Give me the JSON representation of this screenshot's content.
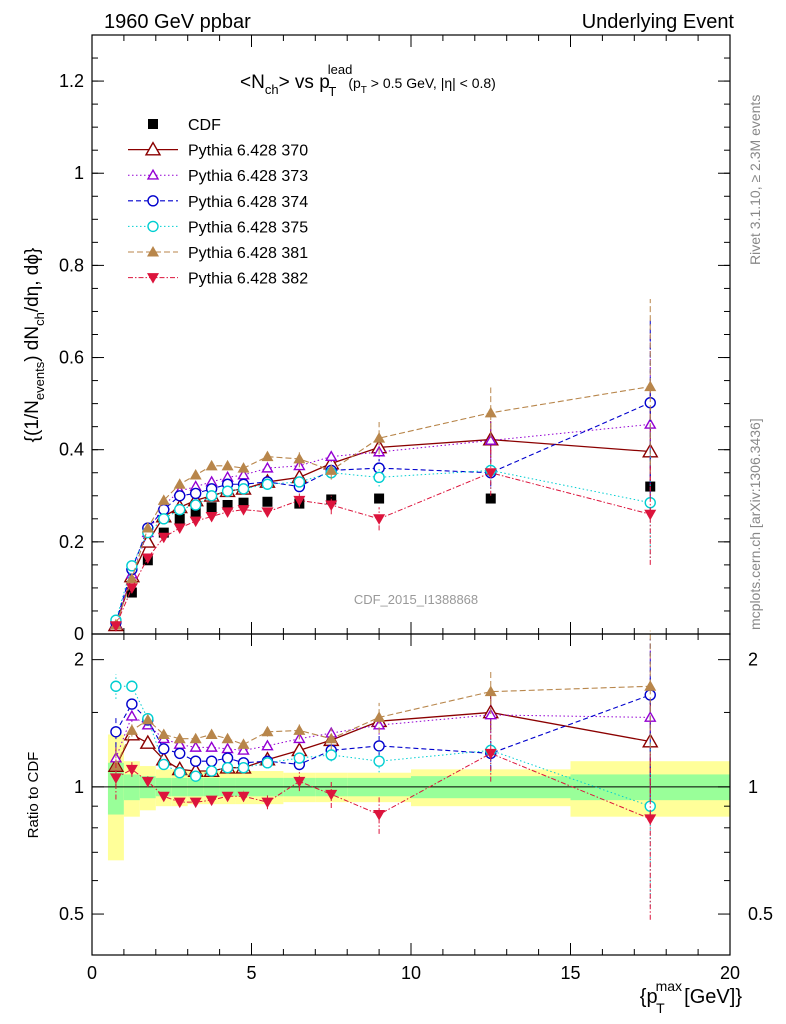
{
  "header": {
    "left": "1960 GeV ppbar",
    "right": "Underlying Event"
  },
  "side_labels": {
    "rivet": "Rivet 3.1.10, ≥ 2.3M events",
    "mcplots": "mcplots.cern.ch [arXiv:1306.3436]"
  },
  "watermark": "CDF_2015_I1388868",
  "chart_data": [
    {
      "type": "scatter",
      "panel": "main",
      "title_parts": {
        "main": "<N",
        "sub1": "ch",
        "mid": "> vs p",
        "sub2": "T",
        "sup": "lead",
        "cut1": "(p",
        "cut_sub": "T",
        "cut2": " > 0.5 GeV, |η| < 0.8)"
      },
      "ylabel_parts": {
        "a": "{(1/N",
        "b": "events",
        "c": ") dN",
        "d": "ch",
        "e": "/dη, dϕ}"
      },
      "xlim": [
        0,
        20
      ],
      "ylim": [
        0,
        1.3
      ],
      "yticks": [
        0,
        0.2,
        0.4,
        0.6,
        0.8,
        1,
        1.2
      ],
      "ytick_labels": [
        "0",
        "0.2",
        "0.4",
        "0.6",
        "0.8",
        "1",
        "1.2"
      ],
      "series": [
        {
          "name": "CDF",
          "color": "#000000",
          "style": "data",
          "x": [
            0.75,
            1.25,
            1.75,
            2.25,
            2.75,
            3.25,
            3.75,
            4.25,
            4.75,
            5.5,
            6.5,
            7.5,
            9,
            12.5,
            17.5
          ],
          "y": [
            0.018,
            0.09,
            0.16,
            0.22,
            0.25,
            0.265,
            0.275,
            0.28,
            0.285,
            0.287,
            0.283,
            0.292,
            0.294,
            0.294,
            0.32
          ],
          "err": [
            0.003,
            0.005,
            0.006,
            0.007,
            0.007,
            0.007,
            0.007,
            0.007,
            0.007,
            0.007,
            0.008,
            0.008,
            0.009,
            0.01,
            0.015
          ]
        },
        {
          "name": "Pythia 6.428 370",
          "color": "#8b0000",
          "marker": "triangle-open",
          "dash": "",
          "lw": 1.3,
          "x": [
            0.75,
            1.25,
            1.75,
            2.25,
            2.75,
            3.25,
            3.75,
            4.25,
            4.75,
            5.5,
            6.5,
            7.5,
            9,
            12.5,
            17.5
          ],
          "y": [
            0.019,
            0.125,
            0.2,
            0.255,
            0.275,
            0.29,
            0.3,
            0.31,
            0.315,
            0.33,
            0.34,
            0.37,
            0.405,
            0.422,
            0.396
          ],
          "err": [
            0.002,
            0.004,
            0.005,
            0.005,
            0.006,
            0.006,
            0.006,
            0.007,
            0.007,
            0.007,
            0.01,
            0.012,
            0.02,
            0.04,
            0.13
          ]
        },
        {
          "name": "Pythia 6.428 373",
          "color": "#9400d3",
          "marker": "triangle-open-small",
          "dash": "1.5,2.5",
          "lw": 1,
          "x": [
            0.75,
            1.25,
            1.75,
            2.25,
            2.75,
            3.25,
            3.75,
            4.25,
            4.75,
            5.5,
            6.5,
            7.5,
            9,
            12.5,
            17.5
          ],
          "y": [
            0.021,
            0.13,
            0.22,
            0.28,
            0.31,
            0.32,
            0.33,
            0.34,
            0.345,
            0.36,
            0.365,
            0.385,
            0.395,
            0.42,
            0.455
          ],
          "err": [
            0.002,
            0.004,
            0.005,
            0.005,
            0.006,
            0.006,
            0.006,
            0.007,
            0.007,
            0.007,
            0.01,
            0.012,
            0.02,
            0.04,
            0.2
          ]
        },
        {
          "name": "Pythia 6.428 374",
          "color": "#0000cd",
          "marker": "circle-open",
          "dash": "5,3",
          "lw": 1.1,
          "x": [
            0.75,
            1.25,
            1.75,
            2.25,
            2.75,
            3.25,
            3.75,
            4.25,
            4.75,
            5.5,
            6.5,
            7.5,
            9,
            12.5,
            17.5
          ],
          "y": [
            0.025,
            0.14,
            0.23,
            0.27,
            0.3,
            0.305,
            0.315,
            0.325,
            0.325,
            0.33,
            0.32,
            0.355,
            0.36,
            0.35,
            0.502
          ],
          "err": [
            0.002,
            0.004,
            0.005,
            0.005,
            0.006,
            0.006,
            0.006,
            0.007,
            0.007,
            0.007,
            0.01,
            0.012,
            0.02,
            0.03,
            0.18
          ]
        },
        {
          "name": "Pythia 6.428 375",
          "color": "#00ced1",
          "marker": "circle-open",
          "dash": "1.5,2.5",
          "lw": 1,
          "x": [
            0.75,
            1.25,
            1.75,
            2.25,
            2.75,
            3.25,
            3.75,
            4.25,
            4.75,
            5.5,
            6.5,
            7.5,
            9,
            12.5,
            17.5
          ],
          "y": [
            0.03,
            0.148,
            0.22,
            0.25,
            0.27,
            0.28,
            0.3,
            0.31,
            0.315,
            0.325,
            0.33,
            0.35,
            0.34,
            0.355,
            0.285
          ],
          "err": [
            0.002,
            0.004,
            0.005,
            0.005,
            0.006,
            0.006,
            0.006,
            0.007,
            0.007,
            0.007,
            0.01,
            0.012,
            0.02,
            0.04,
            0.12
          ]
        },
        {
          "name": "Pythia 6.428 381",
          "color": "#b8864b",
          "marker": "triangle-filled",
          "dash": "6,3",
          "lw": 1.1,
          "x": [
            0.75,
            1.25,
            1.75,
            2.25,
            2.75,
            3.25,
            3.75,
            4.25,
            4.75,
            5.5,
            6.5,
            7.5,
            9,
            12.5,
            17.5
          ],
          "y": [
            0.02,
            0.12,
            0.23,
            0.29,
            0.325,
            0.345,
            0.365,
            0.365,
            0.36,
            0.385,
            0.38,
            0.355,
            0.425,
            0.48,
            0.537
          ],
          "err": [
            0.002,
            0.004,
            0.005,
            0.006,
            0.006,
            0.006,
            0.007,
            0.007,
            0.008,
            0.01,
            0.018,
            0.02,
            0.035,
            0.055,
            0.19
          ]
        },
        {
          "name": "Pythia 6.428 382",
          "color": "#dc143c",
          "marker": "triangle-down-filled",
          "dash": "5,2,1.5,2",
          "lw": 1,
          "x": [
            0.75,
            1.25,
            1.75,
            2.25,
            2.75,
            3.25,
            3.75,
            4.25,
            4.75,
            5.5,
            6.5,
            7.5,
            9,
            12.5,
            17.5
          ],
          "y": [
            0.018,
            0.1,
            0.165,
            0.21,
            0.23,
            0.245,
            0.255,
            0.265,
            0.27,
            0.265,
            0.29,
            0.28,
            0.25,
            0.35,
            0.26
          ],
          "err": [
            0.002,
            0.004,
            0.005,
            0.005,
            0.006,
            0.006,
            0.006,
            0.007,
            0.008,
            0.01,
            0.015,
            0.02,
            0.025,
            0.05,
            0.11
          ]
        }
      ]
    },
    {
      "type": "scatter",
      "panel": "ratio",
      "ylabel": "Ratio to CDF",
      "xlabel_parts": {
        "a": "{p",
        "sub": "T",
        "sup": "max",
        "b": " [GeV]}"
      },
      "xlim": [
        0,
        20
      ],
      "ylim": [
        0.4,
        2.3
      ],
      "yscale": "log",
      "xticks": [
        0,
        5,
        10,
        15,
        20
      ],
      "xtick_labels": [
        "0",
        "5",
        "10",
        "15",
        "20"
      ],
      "yticks": [
        0.5,
        1,
        2
      ],
      "ytick_labels": [
        "0.5",
        "1",
        "2"
      ],
      "reference_line": 1,
      "bands": {
        "edges": [
          0.5,
          1,
          1.5,
          2,
          2.5,
          3,
          3.5,
          4,
          4.5,
          5,
          6,
          7,
          8,
          10,
          15,
          20
        ],
        "green_half": [
          0.14,
          0.07,
          0.06,
          0.05,
          0.05,
          0.05,
          0.05,
          0.05,
          0.05,
          0.05,
          0.05,
          0.05,
          0.05,
          0.06,
          0.07
        ],
        "yellow_half": [
          0.33,
          0.15,
          0.12,
          0.1,
          0.1,
          0.09,
          0.09,
          0.09,
          0.09,
          0.09,
          0.08,
          0.08,
          0.08,
          0.1,
          0.15
        ]
      },
      "band_colors": {
        "green": "#99ff99",
        "yellow": "#ffff99"
      },
      "series": [
        {
          "name": "Pythia 6.428 370",
          "y": [
            1.12,
            1.33,
            1.27,
            1.16,
            1.1,
            1.09,
            1.09,
            1.11,
            1.11,
            1.16,
            1.22,
            1.29,
            1.43,
            1.5,
            1.28
          ]
        },
        {
          "name": "Pythia 6.428 373",
          "y": [
            1.17,
            1.47,
            1.4,
            1.3,
            1.26,
            1.24,
            1.24,
            1.23,
            1.22,
            1.25,
            1.3,
            1.34,
            1.4,
            1.48,
            1.46
          ]
        },
        {
          "name": "Pythia 6.428 374",
          "y": [
            1.35,
            1.57,
            1.44,
            1.23,
            1.2,
            1.15,
            1.15,
            1.17,
            1.14,
            1.15,
            1.13,
            1.22,
            1.25,
            1.2,
            1.65
          ]
        },
        {
          "name": "Pythia 6.428 375",
          "y": [
            1.73,
            1.73,
            1.45,
            1.13,
            1.08,
            1.06,
            1.09,
            1.11,
            1.11,
            1.14,
            1.17,
            1.19,
            1.15,
            1.22,
            0.9
          ]
        },
        {
          "name": "Pythia 6.428 381",
          "y": [
            1.12,
            1.36,
            1.44,
            1.33,
            1.3,
            1.3,
            1.33,
            1.3,
            1.26,
            1.35,
            1.36,
            1.3,
            1.46,
            1.68,
            1.73
          ]
        },
        {
          "name": "Pythia 6.428 382",
          "y": [
            1.05,
            1.1,
            1.03,
            0.95,
            0.92,
            0.92,
            0.93,
            0.95,
            0.95,
            0.92,
            1.03,
            0.96,
            0.86,
            1.2,
            0.84
          ]
        }
      ]
    }
  ]
}
